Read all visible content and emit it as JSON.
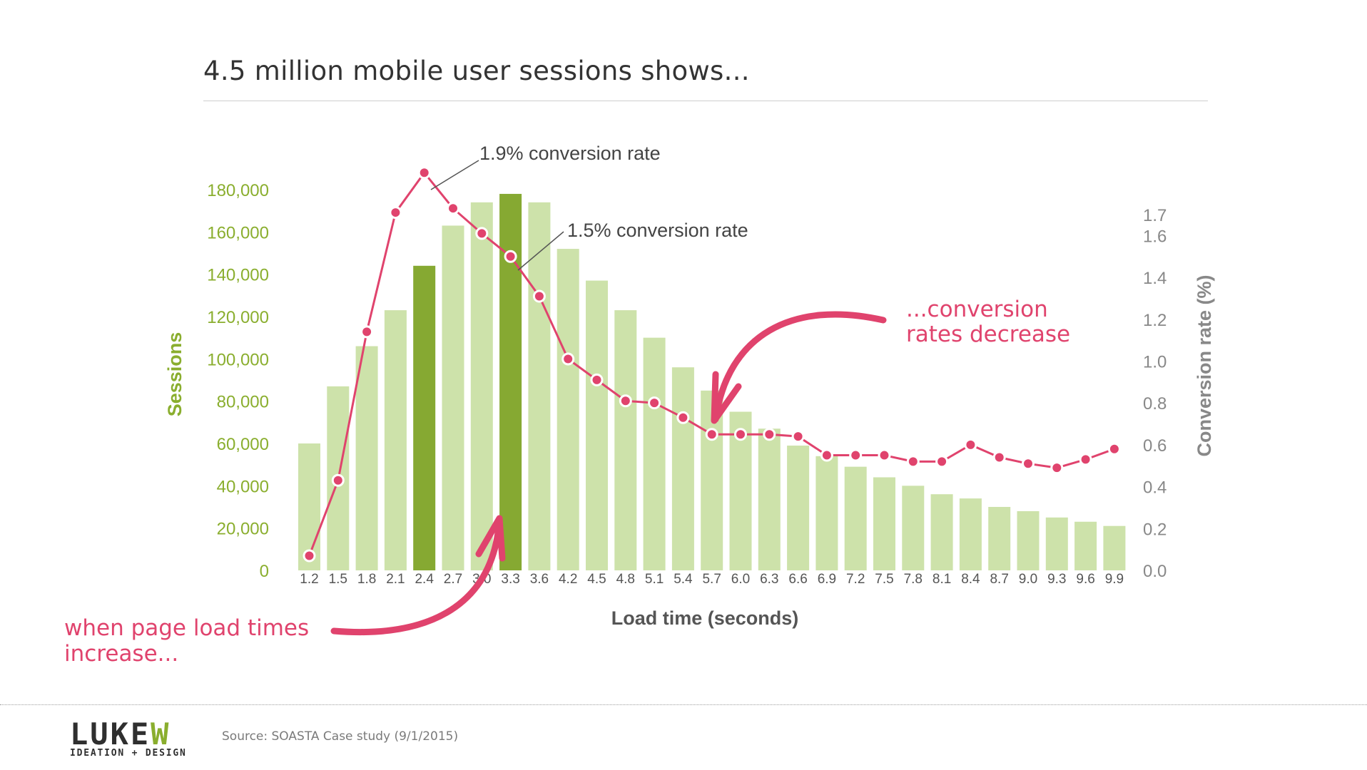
{
  "slide": {
    "title": "4.5 million mobile user sessions shows..."
  },
  "chart_data": {
    "type": "bar",
    "xlabel": "Load time (seconds)",
    "ylabel_left": "Sessions",
    "ylabel_right": "Conversion rate (%)",
    "ylim_left": [
      0,
      180000
    ],
    "ylim_right": [
      0,
      1.7
    ],
    "left_ticks": [
      "0",
      "20,000",
      "40,000",
      "60,000",
      "80,000",
      "100,000",
      "120,000",
      "140,000",
      "160,000",
      "180,000"
    ],
    "right_ticks": [
      "0.0",
      "0.2",
      "0.4",
      "0.6",
      "0.8",
      "1.0",
      "1.2",
      "1.4",
      "1.6",
      "1.7"
    ],
    "categories": [
      "1.2",
      "1.5",
      "1.8",
      "2.1",
      "2.4",
      "2.7",
      "3.0",
      "3.3",
      "3.6",
      "4.2",
      "4.5",
      "4.8",
      "5.1",
      "5.4",
      "5.7",
      "6.0",
      "6.3",
      "6.6",
      "6.9",
      "7.2",
      "7.5",
      "7.8",
      "8.1",
      "8.4",
      "8.7",
      "9.0",
      "9.3",
      "9.6",
      "9.9"
    ],
    "series": [
      {
        "name": "Sessions",
        "axis": "left",
        "type": "bar",
        "values": [
          60000,
          87000,
          106000,
          123000,
          144000,
          163000,
          174000,
          178000,
          174000,
          152000,
          137000,
          123000,
          110000,
          96000,
          85000,
          75000,
          67000,
          59000,
          54000,
          49000,
          44000,
          40000,
          36000,
          34000,
          30000,
          28000,
          25000,
          23000,
          21000
        ],
        "highlighted_categories": [
          "2.4",
          "3.3"
        ]
      },
      {
        "name": "Conversion rate (%)",
        "axis": "right",
        "type": "line",
        "values": [
          0.07,
          0.43,
          1.14,
          1.71,
          1.9,
          1.73,
          1.61,
          1.5,
          1.31,
          1.01,
          0.91,
          0.81,
          0.8,
          0.73,
          0.65,
          0.65,
          0.65,
          0.64,
          0.55,
          0.55,
          0.55,
          0.52,
          0.52,
          0.6,
          0.54,
          0.51,
          0.49,
          0.53,
          0.58
        ]
      }
    ],
    "annotations": {
      "peak_label": "1.9% conversion rate",
      "second_label": "1.5% conversion rate",
      "left_callout": [
        "when page load times",
        "increase..."
      ],
      "right_callout": [
        "...conversion",
        "rates decrease"
      ]
    },
    "grid": false
  },
  "colors": {
    "bar": "#cde2aa",
    "bar_highlight": "#86a932",
    "left_axis_text": "#8aae2e",
    "right_axis_text": "#888888",
    "line": "#e0436d",
    "callout": "#e0436d"
  },
  "footer": {
    "logo_main": "LUKE",
    "logo_accent": "W",
    "logo_tagline": "IDEATION + DESIGN",
    "source": "Source: SOASTA Case study (9/1/2015)"
  }
}
